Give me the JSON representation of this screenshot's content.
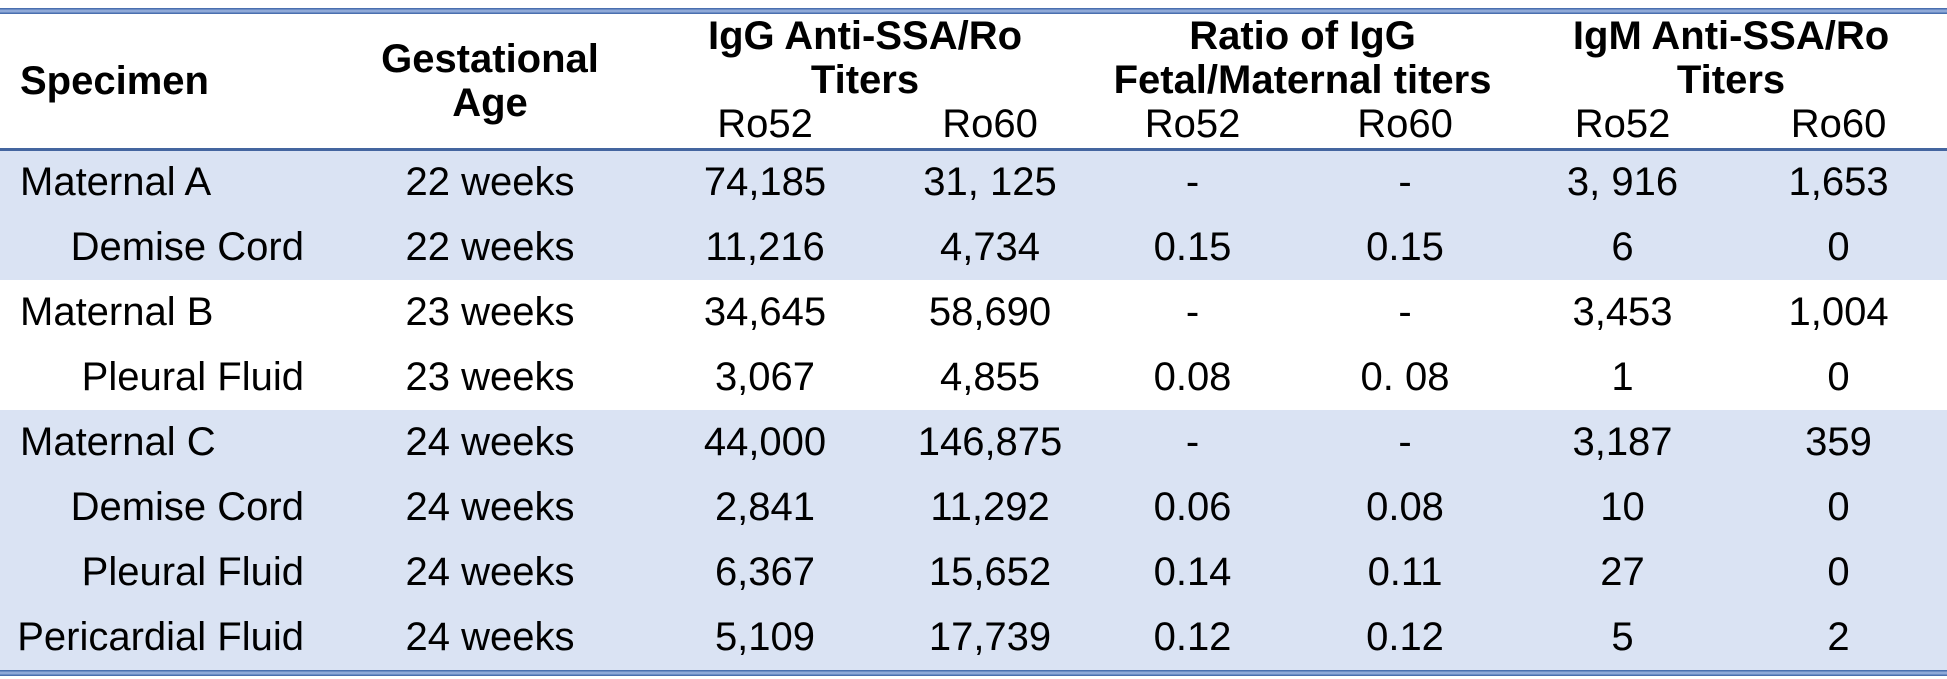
{
  "colors": {
    "row_shade": "#dae3f3",
    "accent_line_dark": "#4a6faf",
    "accent_line_light": "#8fa9d8",
    "header_separator": "#44659f",
    "text": "#000000",
    "background": "#ffffff"
  },
  "table": {
    "headers": {
      "specimen": "Specimen",
      "gestational_age": "Gestational Age",
      "igg_group": "IgG Anti-SSA/Ro Titers",
      "ratio_group": "Ratio of IgG Fetal/Maternal titers",
      "igm_group": "IgM Anti-SSA/Ro Titers"
    },
    "sub_headers": [
      "Ro52",
      "Ro60",
      "Ro52",
      "Ro60",
      "Ro52",
      "Ro60"
    ],
    "rows": [
      {
        "indent": false,
        "shaded": true,
        "cells": [
          "Maternal A",
          "22 weeks",
          "74,185",
          "31, 125",
          "-",
          "-",
          "3, 916",
          "1,653"
        ]
      },
      {
        "indent": true,
        "shaded": true,
        "cells": [
          "Demise Cord",
          "22 weeks",
          "11,216",
          "4,734",
          "0.15",
          "0.15",
          "6",
          "0"
        ]
      },
      {
        "indent": false,
        "shaded": false,
        "cells": [
          "Maternal B",
          "23 weeks",
          "34,645",
          "58,690",
          "-",
          "-",
          "3,453",
          "1,004"
        ]
      },
      {
        "indent": true,
        "shaded": false,
        "cells": [
          "Pleural Fluid",
          "23 weeks",
          "3,067",
          "4,855",
          "0.08",
          "0. 08",
          "1",
          "0"
        ]
      },
      {
        "indent": false,
        "shaded": true,
        "cells": [
          "Maternal C",
          "24 weeks",
          "44,000",
          "146,875",
          "-",
          "-",
          "3,187",
          "359"
        ]
      },
      {
        "indent": true,
        "shaded": true,
        "cells": [
          "Demise Cord",
          "24 weeks",
          "2,841",
          "11,292",
          "0.06",
          "0.08",
          "10",
          "0"
        ]
      },
      {
        "indent": true,
        "shaded": true,
        "cells": [
          "Pleural Fluid",
          "24 weeks",
          "6,367",
          "15,652",
          "0.14",
          "0.11",
          "27",
          "0"
        ]
      },
      {
        "indent": true,
        "shaded": true,
        "cells": [
          "Pericardial Fluid",
          "24 weeks",
          "5,109",
          "17,739",
          "0.12",
          "0.12",
          "5",
          "2"
        ]
      }
    ]
  }
}
